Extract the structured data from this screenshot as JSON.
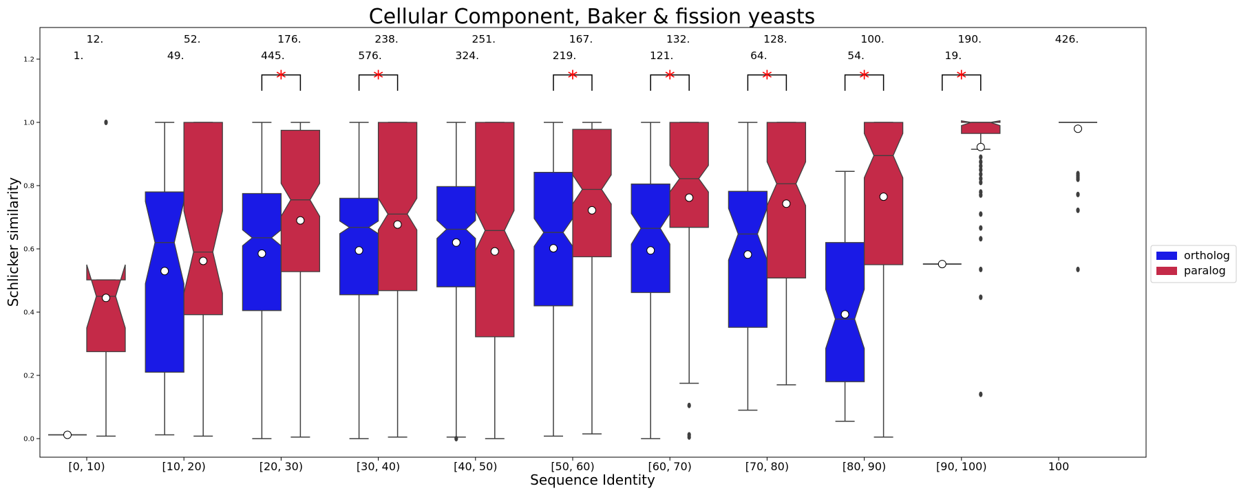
{
  "chart_data": {
    "type": "boxplot",
    "title": "Cellular Component, Baker & fission yeasts",
    "xlabel": "Sequence Identity",
    "ylabel": "Schlicker similarity",
    "ylim": [
      -0.055,
      1.3
    ],
    "yticks": [
      "0.0",
      "0.2",
      "0.4",
      "0.6",
      "0.8",
      "1.0",
      "1.2"
    ],
    "notched": true,
    "grid": false,
    "legend_position": "right",
    "categories": [
      "[0, 10)",
      "[10, 20)",
      "[20, 30)",
      "[30, 40)",
      "[40, 50)",
      "[50, 60)",
      "[60, 70)",
      "[70, 80)",
      "[80, 90)",
      "[90, 100)",
      "100"
    ],
    "series": [
      {
        "name": "ortholog",
        "color": "#1a1ae6",
        "boxes": [
          {
            "n": "1.",
            "q1": 0.012,
            "med": 0.012,
            "q3": 0.012,
            "wlo": 0.012,
            "whi": 0.012,
            "nlo": 0.012,
            "nhi": 0.012,
            "mean": 0.012,
            "outliers": []
          },
          {
            "n": "49.",
            "q1": 0.21,
            "med": 0.62,
            "q3": 0.78,
            "wlo": 0.012,
            "whi": 1.0,
            "nlo": 0.49,
            "nhi": 0.75,
            "mean": 0.53,
            "outliers": []
          },
          {
            "n": "445.",
            "q1": 0.405,
            "med": 0.635,
            "q3": 0.775,
            "wlo": 0.0,
            "whi": 1.0,
            "nlo": 0.61,
            "nhi": 0.66,
            "mean": 0.585,
            "outliers": []
          },
          {
            "n": "576.",
            "q1": 0.455,
            "med": 0.668,
            "q3": 0.76,
            "wlo": 0.0,
            "whi": 1.0,
            "nlo": 0.648,
            "nhi": 0.688,
            "mean": 0.595,
            "outliers": []
          },
          {
            "n": "324.",
            "q1": 0.48,
            "med": 0.662,
            "q3": 0.797,
            "wlo": 0.005,
            "whi": 1.0,
            "nlo": 0.633,
            "nhi": 0.69,
            "mean": 0.62,
            "outliers": [
              0.0
            ]
          },
          {
            "n": "219.",
            "q1": 0.42,
            "med": 0.652,
            "q3": 0.842,
            "wlo": 0.008,
            "whi": 1.0,
            "nlo": 0.608,
            "nhi": 0.696,
            "mean": 0.602,
            "outliers": []
          },
          {
            "n": "121.",
            "q1": 0.462,
            "med": 0.665,
            "q3": 0.805,
            "wlo": 0.0,
            "whi": 1.0,
            "nlo": 0.615,
            "nhi": 0.712,
            "mean": 0.595,
            "outliers": []
          },
          {
            "n": "64.",
            "q1": 0.352,
            "med": 0.647,
            "q3": 0.782,
            "wlo": 0.09,
            "whi": 1.0,
            "nlo": 0.565,
            "nhi": 0.728,
            "mean": 0.582,
            "outliers": []
          },
          {
            "n": "54.",
            "q1": 0.18,
            "med": 0.378,
            "q3": 0.62,
            "wlo": 0.055,
            "whi": 0.845,
            "nlo": 0.285,
            "nhi": 0.472,
            "mean": 0.393,
            "outliers": []
          },
          {
            "n": "19.",
            "q1": 0.552,
            "med": 0.552,
            "q3": 0.552,
            "wlo": 0.552,
            "whi": 0.552,
            "nlo": 0.552,
            "nhi": 0.552,
            "mean": 0.552,
            "outliers": []
          },
          null
        ]
      },
      {
        "name": "paralog",
        "color": "#c42a48",
        "boxes": [
          {
            "n": "12.",
            "q1": 0.275,
            "med": 0.45,
            "q3": 0.502,
            "wlo": 0.008,
            "whi": 0.502,
            "nlo": 0.35,
            "nhi": 0.55,
            "mean": 0.445,
            "outliers": [
              1.0
            ]
          },
          {
            "n": "52.",
            "q1": 0.392,
            "med": 0.59,
            "q3": 1.0,
            "wlo": 0.008,
            "whi": 1.0,
            "nlo": 0.46,
            "nhi": 0.72,
            "mean": 0.562,
            "outliers": []
          },
          {
            "n": "176.",
            "q1": 0.528,
            "med": 0.755,
            "q3": 0.975,
            "wlo": 0.005,
            "whi": 1.0,
            "nlo": 0.703,
            "nhi": 0.807,
            "mean": 0.69,
            "outliers": []
          },
          {
            "n": "238.",
            "q1": 0.468,
            "med": 0.71,
            "q3": 1.0,
            "wlo": 0.005,
            "whi": 1.0,
            "nlo": 0.66,
            "nhi": 0.76,
            "mean": 0.677,
            "outliers": []
          },
          {
            "n": "251.",
            "q1": 0.322,
            "med": 0.658,
            "q3": 1.0,
            "wlo": 0.0,
            "whi": 1.0,
            "nlo": 0.595,
            "nhi": 0.721,
            "mean": 0.592,
            "outliers": []
          },
          {
            "n": "167.",
            "q1": 0.575,
            "med": 0.788,
            "q3": 0.978,
            "wlo": 0.015,
            "whi": 1.0,
            "nlo": 0.742,
            "nhi": 0.834,
            "mean": 0.722,
            "outliers": []
          },
          {
            "n": "132.",
            "q1": 0.668,
            "med": 0.822,
            "q3": 1.0,
            "wlo": 0.175,
            "whi": 1.0,
            "nlo": 0.78,
            "nhi": 0.864,
            "mean": 0.762,
            "outliers": [
              0.105,
              0.012,
              0.005
            ]
          },
          {
            "n": "128.",
            "q1": 0.508,
            "med": 0.806,
            "q3": 1.0,
            "wlo": 0.17,
            "whi": 1.0,
            "nlo": 0.737,
            "nhi": 0.875,
            "mean": 0.743,
            "outliers": []
          },
          {
            "n": "100.",
            "q1": 0.55,
            "med": 0.895,
            "q3": 1.0,
            "wlo": 0.005,
            "whi": 1.0,
            "nlo": 0.825,
            "nhi": 0.965,
            "mean": 0.765,
            "outliers": []
          },
          {
            "n": "190.",
            "q1": 0.965,
            "med": 1.0,
            "q3": 1.0,
            "wlo": 0.915,
            "whi": 1.0,
            "nlo": 0.99,
            "nhi": 1.005,
            "mean": 0.922,
            "outliers": [
              0.89,
              0.875,
              0.862,
              0.85,
              0.836,
              0.822,
              0.81,
              0.78,
              0.77,
              0.71,
              0.666,
              0.632,
              0.535,
              0.447,
              0.14
            ]
          },
          {
            "n": "426.",
            "q1": 1.0,
            "med": 1.0,
            "q3": 1.0,
            "wlo": 1.0,
            "whi": 1.0,
            "nlo": 1.0,
            "nhi": 1.0,
            "mean": 0.98,
            "outliers": [
              0.838,
              0.832,
              0.826,
              0.82,
              0.772,
              0.722,
              0.535
            ]
          }
        ]
      }
    ],
    "significance": [
      {
        "category": 2,
        "label": "*"
      },
      {
        "category": 3,
        "label": "*"
      },
      {
        "category": 5,
        "label": "*"
      },
      {
        "category": 6,
        "label": "*"
      },
      {
        "category": 7,
        "label": "*"
      },
      {
        "category": 8,
        "label": "*"
      },
      {
        "category": 9,
        "label": "*"
      }
    ]
  }
}
